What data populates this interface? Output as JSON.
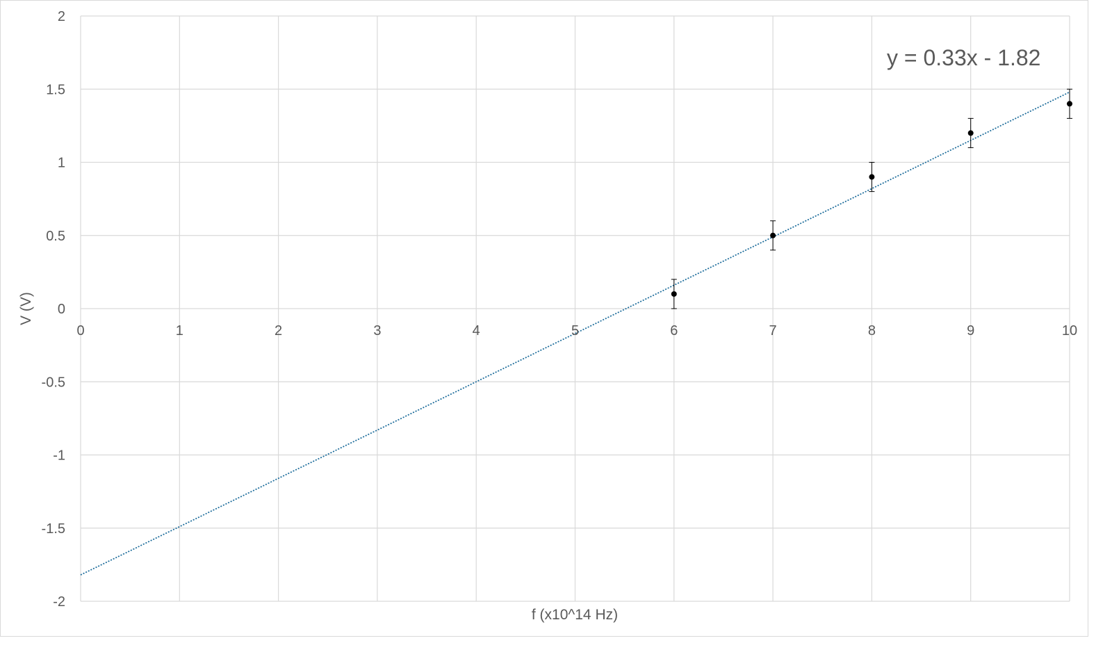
{
  "chart_data": {
    "type": "scatter",
    "title": "",
    "xlabel": "f (x10^14 Hz)",
    "ylabel": "V (V)",
    "xlim": [
      0,
      10
    ],
    "ylim": [
      -2,
      2
    ],
    "x_ticks": [
      0,
      1,
      2,
      3,
      4,
      5,
      6,
      7,
      8,
      9,
      10
    ],
    "y_ticks": [
      -2,
      -1.5,
      -1,
      -0.5,
      0,
      0.5,
      1,
      1.5,
      2
    ],
    "grid": true,
    "legend": "none",
    "series": [
      {
        "x": [
          6,
          7,
          8,
          9,
          10
        ],
        "y": [
          0.1,
          0.5,
          0.9,
          1.2,
          1.4
        ],
        "y_error": 0.1,
        "color": "#000000"
      }
    ],
    "trendline": {
      "slope": 0.33,
      "intercept": -1.82,
      "color": "#1f6e9c",
      "style": "dotted",
      "label": "y = 0.33x - 1.82"
    }
  }
}
